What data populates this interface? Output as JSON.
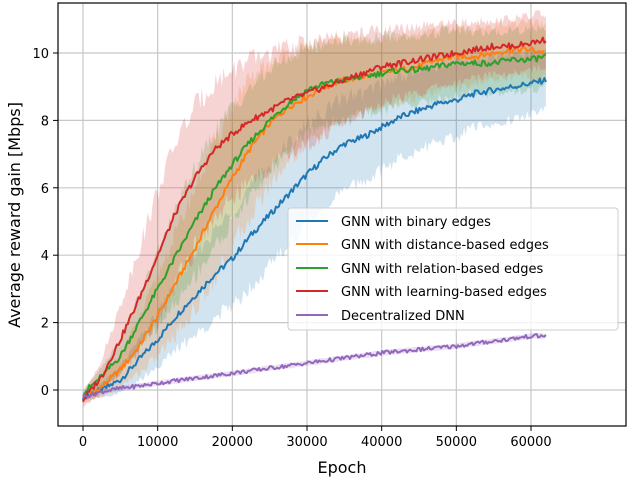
{
  "chart_data": {
    "type": "line",
    "title": "",
    "xlabel": "Epoch",
    "ylabel": "Average reward gain [Mbps]",
    "xlim": [
      -3000,
      65000
    ],
    "ylim": [
      -1.0,
      11.5
    ],
    "xticks": [
      0,
      10000,
      20000,
      30000,
      40000,
      50000,
      60000
    ],
    "yticks": [
      0,
      2,
      4,
      6,
      8,
      10
    ],
    "grid": true,
    "legend_position": "center right",
    "x": [
      0,
      2500,
      5000,
      7500,
      10000,
      12500,
      15000,
      17500,
      20000,
      22500,
      25000,
      27500,
      30000,
      32500,
      35000,
      37500,
      40000,
      42500,
      45000,
      47500,
      50000,
      52500,
      55000,
      57500,
      60000,
      62000
    ],
    "series": [
      {
        "name": "GNN with binary edges",
        "color": "#1f77b4",
        "values": [
          -0.2,
          0.0,
          0.3,
          0.9,
          1.5,
          2.2,
          2.8,
          3.4,
          3.9,
          4.6,
          5.2,
          5.8,
          6.4,
          6.9,
          7.3,
          7.5,
          7.8,
          8.1,
          8.3,
          8.5,
          8.6,
          8.8,
          8.9,
          9.0,
          9.1,
          9.2
        ],
        "band_halfwidth": [
          0.1,
          0.2,
          0.4,
          0.6,
          0.8,
          1.0,
          1.2,
          1.3,
          1.4,
          1.5,
          1.5,
          1.5,
          1.5,
          1.4,
          1.4,
          1.3,
          1.3,
          1.2,
          1.2,
          1.1,
          1.1,
          1.0,
          1.0,
          1.0,
          0.9,
          0.9
        ]
      },
      {
        "name": "GNN with distance-based edges",
        "color": "#ff7f0e",
        "values": [
          -0.3,
          0.1,
          0.6,
          1.3,
          2.2,
          3.2,
          4.2,
          5.3,
          6.3,
          7.2,
          7.9,
          8.4,
          8.7,
          9.0,
          9.2,
          9.3,
          9.4,
          9.5,
          9.6,
          9.8,
          9.9,
          9.9,
          10.0,
          10.1,
          10.1,
          10.0
        ],
        "band_halfwidth": [
          0.1,
          0.3,
          0.5,
          0.8,
          1.2,
          1.5,
          1.8,
          2.0,
          2.1,
          2.0,
          1.8,
          1.6,
          1.4,
          1.3,
          1.2,
          1.1,
          1.0,
          1.0,
          0.9,
          0.9,
          0.9,
          0.8,
          0.8,
          0.8,
          0.8,
          0.8
        ]
      },
      {
        "name": "GNN with relation-based edges",
        "color": "#2ca02c",
        "values": [
          -0.1,
          0.4,
          1.0,
          2.0,
          3.0,
          4.0,
          5.0,
          5.9,
          6.7,
          7.4,
          8.0,
          8.5,
          8.9,
          9.1,
          9.2,
          9.3,
          9.4,
          9.5,
          9.5,
          9.6,
          9.7,
          9.7,
          9.7,
          9.8,
          9.8,
          9.9
        ],
        "band_halfwidth": [
          0.1,
          0.3,
          0.5,
          0.8,
          1.1,
          1.4,
          1.6,
          1.7,
          1.7,
          1.6,
          1.5,
          1.4,
          1.3,
          1.2,
          1.2,
          1.1,
          1.1,
          1.0,
          1.0,
          1.0,
          1.0,
          0.9,
          0.9,
          0.9,
          0.9,
          0.9
        ]
      },
      {
        "name": "GNN with learning-based edges",
        "color": "#d62728",
        "values": [
          -0.3,
          0.4,
          1.5,
          2.7,
          4.0,
          5.3,
          6.3,
          7.1,
          7.6,
          8.0,
          8.3,
          8.6,
          8.8,
          9.0,
          9.2,
          9.4,
          9.6,
          9.7,
          9.8,
          9.9,
          10.0,
          10.1,
          10.2,
          10.2,
          10.3,
          10.4
        ],
        "band_halfwidth": [
          0.2,
          0.5,
          1.0,
          1.5,
          1.9,
          2.1,
          2.1,
          2.0,
          1.9,
          1.8,
          1.7,
          1.6,
          1.5,
          1.4,
          1.3,
          1.2,
          1.1,
          1.0,
          1.0,
          0.9,
          0.9,
          0.8,
          0.8,
          0.8,
          0.8,
          0.8
        ]
      },
      {
        "name": "Decentralized DNN",
        "color": "#9467bd",
        "values": [
          -0.2,
          -0.05,
          0.05,
          0.12,
          0.2,
          0.28,
          0.35,
          0.42,
          0.5,
          0.57,
          0.65,
          0.72,
          0.8,
          0.87,
          0.95,
          1.02,
          1.1,
          1.15,
          1.2,
          1.25,
          1.3,
          1.38,
          1.45,
          1.52,
          1.6,
          1.6
        ],
        "band_halfwidth": [
          0.08,
          0.08,
          0.08,
          0.08,
          0.08,
          0.08,
          0.08,
          0.08,
          0.08,
          0.08,
          0.08,
          0.08,
          0.08,
          0.08,
          0.08,
          0.08,
          0.08,
          0.08,
          0.08,
          0.08,
          0.08,
          0.08,
          0.08,
          0.08,
          0.08,
          0.08
        ]
      }
    ]
  },
  "axes": {
    "xlabel": "Epoch",
    "ylabel": "Average reward gain [Mbps]"
  },
  "legend": {
    "items": [
      {
        "label": "GNN with binary edges",
        "color": "#1f77b4"
      },
      {
        "label": "GNN with distance-based edges",
        "color": "#ff7f0e"
      },
      {
        "label": "GNN with relation-based edges",
        "color": "#2ca02c"
      },
      {
        "label": "GNN with learning-based edges",
        "color": "#d62728"
      },
      {
        "label": "Decentralized DNN",
        "color": "#9467bd"
      }
    ]
  }
}
